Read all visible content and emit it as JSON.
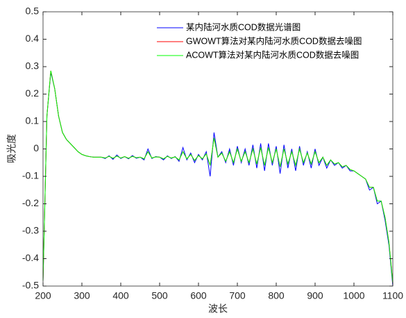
{
  "chart_data": {
    "type": "line",
    "xlabel": "波长",
    "ylabel": "吸光度",
    "x": [
      200,
      210,
      220,
      230,
      240,
      250,
      260,
      270,
      280,
      290,
      300,
      310,
      320,
      330,
      340,
      350,
      360,
      370,
      380,
      390,
      400,
      410,
      420,
      430,
      440,
      450,
      460,
      470,
      480,
      490,
      500,
      510,
      520,
      530,
      540,
      550,
      560,
      570,
      580,
      590,
      600,
      610,
      620,
      630,
      640,
      650,
      660,
      670,
      680,
      690,
      700,
      710,
      720,
      730,
      740,
      750,
      760,
      770,
      780,
      790,
      800,
      810,
      820,
      830,
      840,
      850,
      860,
      870,
      880,
      890,
      900,
      910,
      920,
      930,
      940,
      950,
      960,
      970,
      980,
      990,
      1000,
      1010,
      1020,
      1030,
      1040,
      1050,
      1060,
      1070,
      1080,
      1090,
      1100
    ],
    "series": [
      {
        "name": "某内陆河水质COD数据光谱图",
        "color": "#0000ff",
        "values": [
          -0.48,
          0.12,
          0.28,
          0.22,
          0.12,
          0.06,
          0.035,
          0.02,
          0.005,
          -0.01,
          -0.02,
          -0.025,
          -0.028,
          -0.03,
          -0.03,
          -0.03,
          -0.035,
          -0.025,
          -0.038,
          -0.022,
          -0.035,
          -0.028,
          -0.036,
          -0.024,
          -0.034,
          -0.03,
          -0.04,
          0.0,
          -0.035,
          -0.028,
          -0.03,
          -0.04,
          -0.025,
          -0.035,
          -0.028,
          -0.045,
          0.005,
          -0.04,
          -0.015,
          -0.05,
          -0.02,
          -0.04,
          -0.01,
          -0.1,
          0.06,
          -0.03,
          -0.01,
          -0.05,
          0.0,
          -0.06,
          0.01,
          -0.05,
          0.0,
          -0.06,
          0.015,
          -0.07,
          0.02,
          -0.08,
          0.02,
          -0.06,
          0.01,
          -0.09,
          0.015,
          -0.07,
          0.0,
          -0.08,
          0.01,
          -0.06,
          -0.01,
          -0.07,
          0.0,
          -0.06,
          -0.03,
          -0.07,
          -0.04,
          -0.06,
          -0.05,
          -0.07,
          -0.06,
          -0.08,
          -0.08,
          -0.09,
          -0.1,
          -0.11,
          -0.15,
          -0.14,
          -0.2,
          -0.19,
          -0.26,
          -0.35,
          -0.5
        ]
      },
      {
        "name": "GWOWT算法对某内陆河水质COD数据去噪图",
        "color": "#ff0000",
        "values": [
          -0.48,
          0.12,
          0.285,
          0.22,
          0.12,
          0.06,
          0.035,
          0.02,
          0.005,
          -0.01,
          -0.02,
          -0.025,
          -0.028,
          -0.03,
          -0.03,
          -0.03,
          -0.033,
          -0.027,
          -0.034,
          -0.026,
          -0.033,
          -0.028,
          -0.034,
          -0.027,
          -0.032,
          -0.03,
          -0.036,
          -0.01,
          -0.033,
          -0.029,
          -0.03,
          -0.036,
          -0.027,
          -0.033,
          -0.029,
          -0.04,
          -0.01,
          -0.036,
          -0.02,
          -0.042,
          -0.024,
          -0.036,
          -0.018,
          -0.06,
          0.04,
          -0.03,
          -0.015,
          -0.045,
          -0.01,
          -0.05,
          0.0,
          -0.045,
          -0.01,
          -0.05,
          0.0,
          -0.055,
          0.005,
          -0.06,
          0.005,
          -0.05,
          0.0,
          -0.065,
          0.0,
          -0.055,
          -0.01,
          -0.06,
          0.0,
          -0.05,
          -0.015,
          -0.055,
          -0.01,
          -0.05,
          -0.03,
          -0.06,
          -0.04,
          -0.055,
          -0.05,
          -0.065,
          -0.06,
          -0.075,
          -0.08,
          -0.09,
          -0.1,
          -0.11,
          -0.14,
          -0.14,
          -0.19,
          -0.19,
          -0.25,
          -0.34,
          -0.49
        ]
      },
      {
        "name": "ACOWT算法对某内陆河水质COD数据去噪图",
        "color": "#00ff00",
        "values": [
          -0.48,
          0.12,
          0.285,
          0.22,
          0.12,
          0.06,
          0.035,
          0.02,
          0.005,
          -0.01,
          -0.02,
          -0.025,
          -0.028,
          -0.03,
          -0.03,
          -0.03,
          -0.033,
          -0.027,
          -0.034,
          -0.026,
          -0.033,
          -0.028,
          -0.034,
          -0.027,
          -0.032,
          -0.03,
          -0.036,
          -0.01,
          -0.033,
          -0.029,
          -0.03,
          -0.036,
          -0.027,
          -0.033,
          -0.029,
          -0.04,
          -0.01,
          -0.036,
          -0.02,
          -0.042,
          -0.024,
          -0.036,
          -0.018,
          -0.06,
          0.04,
          -0.03,
          -0.015,
          -0.045,
          -0.01,
          -0.05,
          0.0,
          -0.045,
          -0.01,
          -0.05,
          0.0,
          -0.055,
          0.005,
          -0.06,
          0.005,
          -0.05,
          0.0,
          -0.065,
          0.0,
          -0.055,
          -0.01,
          -0.06,
          0.0,
          -0.05,
          -0.015,
          -0.055,
          -0.01,
          -0.05,
          -0.03,
          -0.06,
          -0.04,
          -0.055,
          -0.05,
          -0.065,
          -0.06,
          -0.075,
          -0.08,
          -0.09,
          -0.1,
          -0.11,
          -0.14,
          -0.14,
          -0.19,
          -0.19,
          -0.25,
          -0.34,
          -0.49
        ]
      }
    ],
    "xlim": [
      200,
      1100
    ],
    "xticks": [
      200,
      300,
      400,
      500,
      600,
      700,
      800,
      900,
      1000,
      1100
    ],
    "ylim": [
      -0.5,
      0.5
    ],
    "yticks": [
      -0.5,
      -0.4,
      -0.3,
      -0.2,
      -0.1,
      0,
      0.1,
      0.2,
      0.3,
      0.4,
      0.5
    ],
    "legend": "upper right"
  }
}
